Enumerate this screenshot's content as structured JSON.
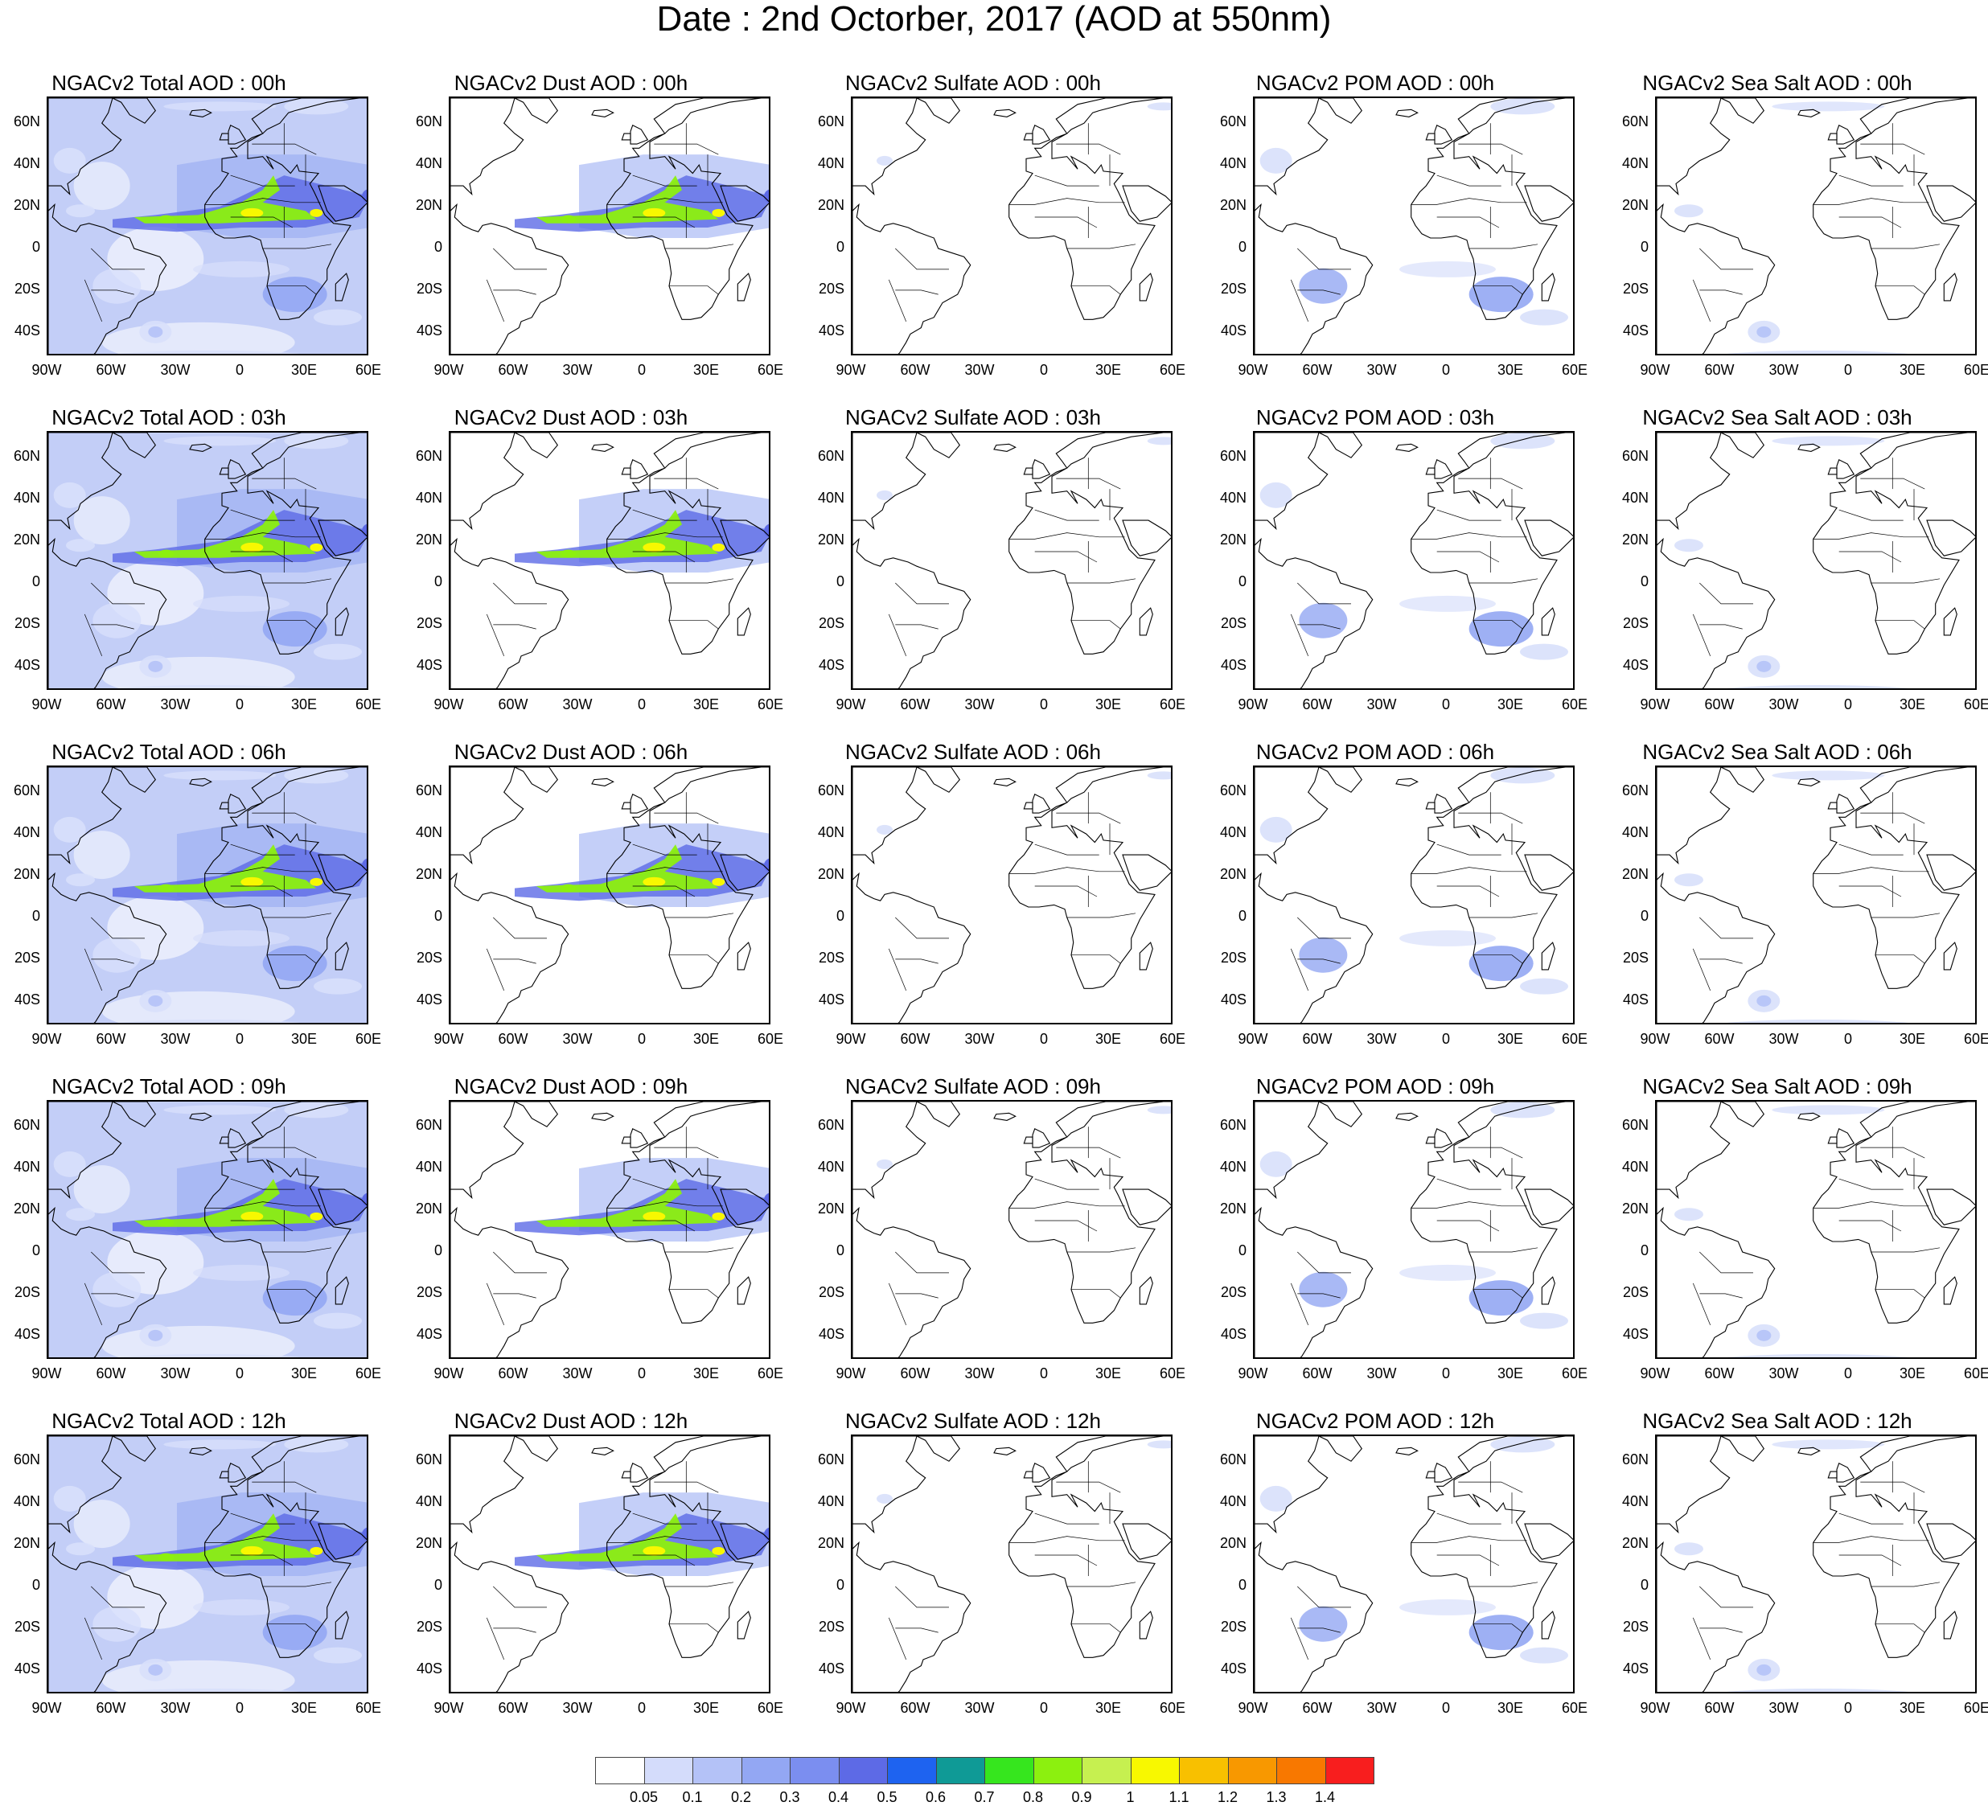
{
  "title": "Date : 2nd Octorber, 2017 (AOD at 550nm)",
  "rows": [
    "00h",
    "03h",
    "06h",
    "09h",
    "12h"
  ],
  "panel_titles": [
    [
      "NGACv2 Total AOD : 00h",
      "NGACv2 Dust AOD : 00h",
      "NGACv2 Sulfate AOD : 00h",
      "NGACv2 POM AOD : 00h",
      "NGACv2 Sea Salt AOD : 00h"
    ],
    [
      "NGACv2 Total AOD : 03h",
      "NGACv2 Dust AOD : 03h",
      "NGACv2 Sulfate AOD : 03h",
      "NGACv2 POM AOD : 03h",
      "NGACv2 Sea Salt AOD : 03h"
    ],
    [
      "NGACv2 Total AOD : 06h",
      "NGACv2 Dust AOD : 06h",
      "NGACv2 Sulfate AOD : 06h",
      "NGACv2 POM AOD : 06h",
      "NGACv2 Sea Salt AOD : 06h"
    ],
    [
      "NGACv2 Total AOD : 09h",
      "NGACv2 Dust AOD : 09h",
      "NGACv2 Sulfate AOD : 09h",
      "NGACv2 POM AOD : 09h",
      "NGACv2 Sea Salt  AOD : 09h"
    ],
    [
      "NGACv2 Total AOD  : 12h",
      "NGACv2 Dust AOD : 12h",
      "NGACv2 Sulfate AOD : 12h",
      "NGACv2 POM  AOD : 12h",
      "NGACv2 Sea Salt  AOD : 12h"
    ]
  ],
  "lat_labels": [
    "60N",
    "40N",
    "20N",
    "0",
    "20S",
    "40S"
  ],
  "lon_labels": [
    "90W",
    "60W",
    "30W",
    "0",
    "30E",
    "60E"
  ],
  "colorbar": {
    "labels": [
      "0.05",
      "0.1",
      "0.2",
      "0.3",
      "0.4",
      "0.5",
      "0.6",
      "0.7",
      "0.8",
      "0.9",
      "1",
      "1.1",
      "1.2",
      "1.3",
      "1.4"
    ],
    "colors": [
      "#ffffff",
      "#d4dcfb",
      "#b4c2f7",
      "#93a7f3",
      "#7b8ef0",
      "#5d6ae6",
      "#1e63f0",
      "#0f9a96",
      "#36e61e",
      "#8cf00f",
      "#c6f050",
      "#f8f800",
      "#f8c000",
      "#f89800",
      "#f87800",
      "#f81e1e"
    ]
  },
  "colors": {
    "total_bg": "#c3cef7",
    "light": "#d8e0fb",
    "mid": "#93a7f3",
    "strong": "#5d6ae6",
    "dust_peak": "#8cf00f",
    "dust_core": "#f8f800"
  }
}
